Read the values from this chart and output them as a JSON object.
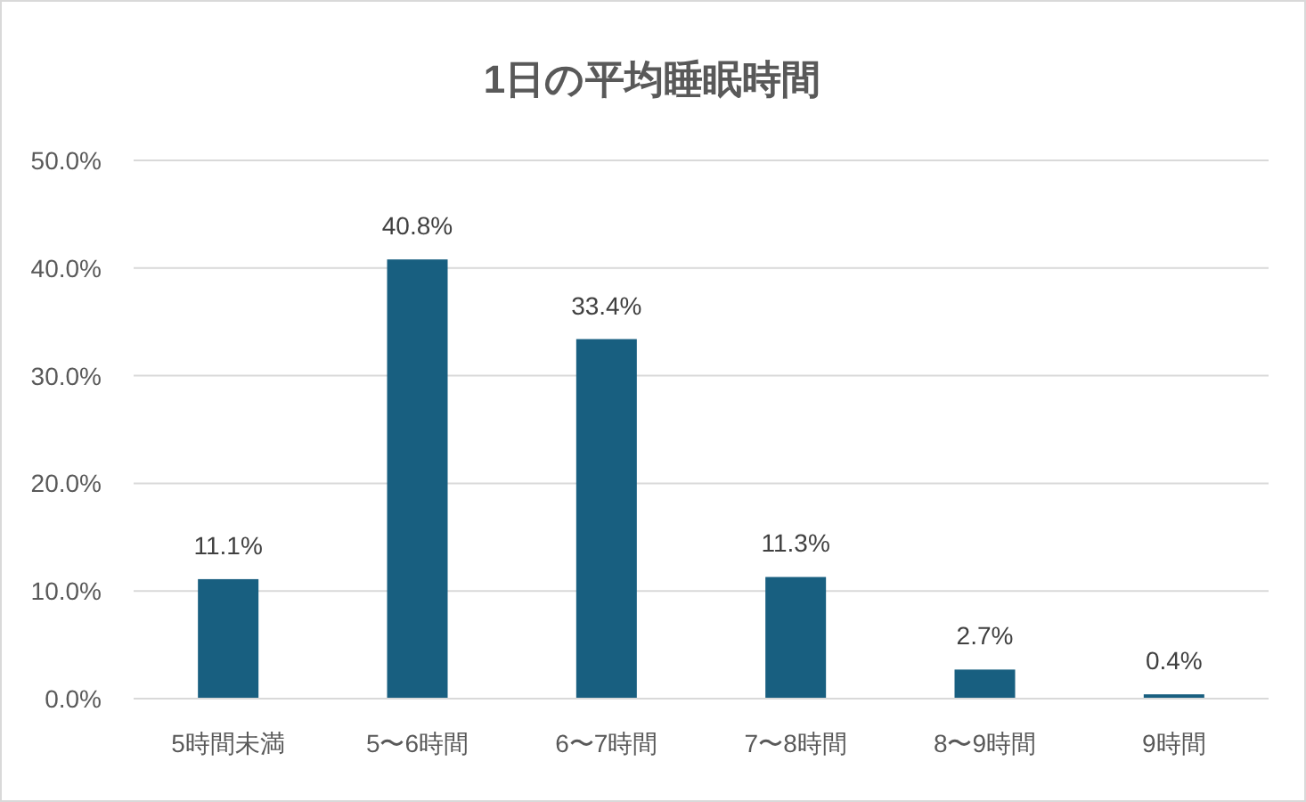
{
  "chart_data": {
    "type": "bar",
    "title": "1日の平均睡眠時間",
    "categories": [
      "5時間未満",
      "5〜6時間",
      "6〜7時間",
      "7〜8時間",
      "8〜9時間",
      "9時間"
    ],
    "values": [
      11.1,
      40.8,
      33.4,
      11.3,
      2.7,
      0.4
    ],
    "value_labels": [
      "11.1%",
      "40.8%",
      "33.4%",
      "11.3%",
      "2.7%",
      "0.4%"
    ],
    "color": "#185f80",
    "ylim": [
      0,
      50
    ],
    "yticks": [
      {
        "value": 0,
        "label": "0.0%"
      },
      {
        "value": 10,
        "label": "10.0%"
      },
      {
        "value": 20,
        "label": "20.0%"
      },
      {
        "value": 30,
        "label": "30.0%"
      },
      {
        "value": 40,
        "label": "40.0%"
      },
      {
        "value": 50,
        "label": "50.0%"
      }
    ],
    "grid": "y"
  }
}
